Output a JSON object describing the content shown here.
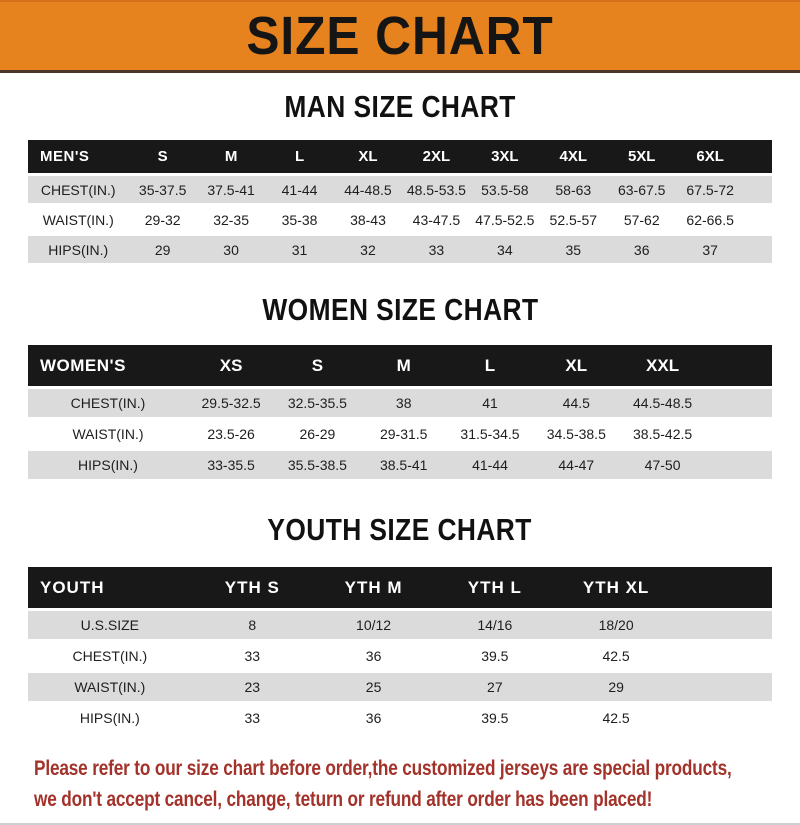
{
  "banner": {
    "title": "SIZE CHART"
  },
  "colors": {
    "banner_bg": "#E7831F",
    "header_bg": "#181818",
    "row_shade": "#DBDBDB",
    "footer_text": "#A2322A"
  },
  "sections": [
    {
      "id": "men",
      "heading": "MAN SIZE CHART",
      "header_label": "MEN'S",
      "columns": [
        "S",
        "M",
        "L",
        "XL",
        "2XL",
        "3XL",
        "4XL",
        "5XL",
        "6XL"
      ],
      "rows": [
        {
          "label": "CHEST(IN.)",
          "values": [
            "35-37.5",
            "37.5-41",
            "41-44",
            "44-48.5",
            "48.5-53.5",
            "53.5-58",
            "58-63",
            "63-67.5",
            "67.5-72"
          ]
        },
        {
          "label": "WAIST(IN.)",
          "values": [
            "29-32",
            "32-35",
            "35-38",
            "38-43",
            "43-47.5",
            "47.5-52.5",
            "52.5-57",
            "57-62",
            "62-66.5"
          ]
        },
        {
          "label": "HIPS(IN.)",
          "values": [
            "29",
            "30",
            "31",
            "32",
            "33",
            "34",
            "35",
            "36",
            "37"
          ]
        }
      ]
    },
    {
      "id": "women",
      "heading": "WOMEN SIZE CHART",
      "header_label": "WOMEN'S",
      "columns": [
        "XS",
        "S",
        "M",
        "L",
        "XL",
        "XXL"
      ],
      "rows": [
        {
          "label": "CHEST(IN.)",
          "values": [
            "29.5-32.5",
            "32.5-35.5",
            "38",
            "41",
            "44.5",
            "44.5-48.5"
          ]
        },
        {
          "label": "WAIST(IN.)",
          "values": [
            "23.5-26",
            "26-29",
            "29-31.5",
            "31.5-34.5",
            "34.5-38.5",
            "38.5-42.5"
          ]
        },
        {
          "label": "HIPS(IN.)",
          "values": [
            "33-35.5",
            "35.5-38.5",
            "38.5-41",
            "41-44",
            "44-47",
            "47-50"
          ]
        }
      ]
    },
    {
      "id": "youth",
      "heading": "YOUTH SIZE CHART",
      "header_label": "YOUTH",
      "columns": [
        "YTH S",
        "YTH M",
        "YTH L",
        "YTH XL"
      ],
      "rows": [
        {
          "label": "U.S.SIZE",
          "values": [
            "8",
            "10/12",
            "14/16",
            "18/20"
          ]
        },
        {
          "label": "CHEST(IN.)",
          "values": [
            "33",
            "36",
            "39.5",
            "42.5"
          ]
        },
        {
          "label": "WAIST(IN.)",
          "values": [
            "23",
            "25",
            "27",
            "29"
          ]
        },
        {
          "label": "HIPS(IN.)",
          "values": [
            "33",
            "36",
            "39.5",
            "42.5"
          ]
        }
      ]
    }
  ],
  "footer": {
    "line1": "Please refer to our size chart before order,the customized jerseys are special products,",
    "line2": "we don't accept cancel, change, teturn or refund after order has been placed!"
  }
}
